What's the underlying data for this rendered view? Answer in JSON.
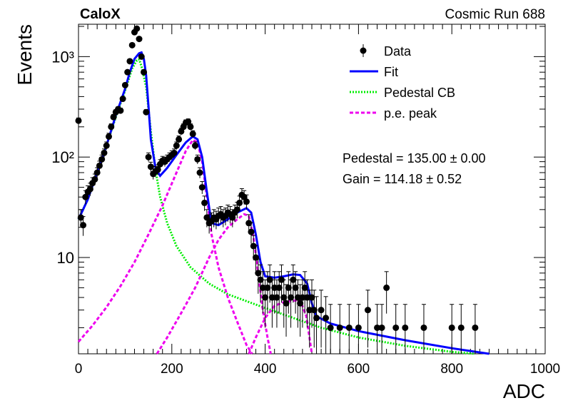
{
  "header": {
    "left_label": "CaloX",
    "right_label": "Cosmic Run 688"
  },
  "stats": {
    "pedestal": "Pedestal = 135.00 ± 0.00",
    "gain": "Gain = 114.18 ± 0.52"
  },
  "chart_data": {
    "type": "scatter",
    "xlabel": "ADC",
    "ylabel": "Events",
    "xlim": [
      0,
      1000
    ],
    "ylim": [
      1.1,
      2100
    ],
    "y_scale": "log",
    "x_ticks": [
      0,
      200,
      400,
      600,
      800,
      1000
    ],
    "y_ticks": [
      {
        "value": 10,
        "label": "10"
      },
      {
        "value": 100,
        "label": "10²"
      },
      {
        "value": 1000,
        "label": "10³"
      }
    ],
    "grid": false,
    "legend": {
      "placement": "top-right",
      "entries": [
        {
          "label": "Data",
          "style": "marker",
          "color": "#000000"
        },
        {
          "label": "Fit",
          "style": "solid",
          "color": "#0000ff"
        },
        {
          "label": "Pedestal CB",
          "style": "dotted",
          "color": "#00ee00"
        },
        {
          "label": "p.e. peak",
          "style": "dashed",
          "color": "#ee00ee"
        }
      ]
    },
    "series": [
      {
        "name": "Data",
        "style": "marker",
        "color": "#000000",
        "points": [
          {
            "x": 0,
            "y": 230
          },
          {
            "x": 5,
            "y": 25
          },
          {
            "x": 10,
            "y": 21
          },
          {
            "x": 15,
            "y": 40
          },
          {
            "x": 20,
            "y": 45
          },
          {
            "x": 25,
            "y": 48
          },
          {
            "x": 30,
            "y": 55
          },
          {
            "x": 35,
            "y": 60
          },
          {
            "x": 40,
            "y": 70
          },
          {
            "x": 45,
            "y": 82
          },
          {
            "x": 50,
            "y": 95
          },
          {
            "x": 55,
            "y": 110
          },
          {
            "x": 60,
            "y": 130
          },
          {
            "x": 65,
            "y": 160
          },
          {
            "x": 70,
            "y": 200
          },
          {
            "x": 75,
            "y": 250
          },
          {
            "x": 80,
            "y": 280
          },
          {
            "x": 85,
            "y": 300
          },
          {
            "x": 90,
            "y": 290
          },
          {
            "x": 95,
            "y": 380
          },
          {
            "x": 100,
            "y": 520
          },
          {
            "x": 105,
            "y": 700
          },
          {
            "x": 110,
            "y": 900
          },
          {
            "x": 115,
            "y": 1300
          },
          {
            "x": 120,
            "y": 1750
          },
          {
            "x": 125,
            "y": 1900
          },
          {
            "x": 130,
            "y": 1500
          },
          {
            "x": 135,
            "y": 1000
          },
          {
            "x": 140,
            "y": 700
          },
          {
            "x": 145,
            "y": 280
          },
          {
            "x": 150,
            "y": 100
          },
          {
            "x": 155,
            "y": 80
          },
          {
            "x": 160,
            "y": 68
          },
          {
            "x": 165,
            "y": 72
          },
          {
            "x": 170,
            "y": 75
          },
          {
            "x": 175,
            "y": 85
          },
          {
            "x": 180,
            "y": 92
          },
          {
            "x": 185,
            "y": 90
          },
          {
            "x": 190,
            "y": 95
          },
          {
            "x": 195,
            "y": 100
          },
          {
            "x": 200,
            "y": 105
          },
          {
            "x": 205,
            "y": 110
          },
          {
            "x": 210,
            "y": 130
          },
          {
            "x": 215,
            "y": 150
          },
          {
            "x": 220,
            "y": 180
          },
          {
            "x": 225,
            "y": 200
          },
          {
            "x": 230,
            "y": 220
          },
          {
            "x": 235,
            "y": 225
          },
          {
            "x": 240,
            "y": 200
          },
          {
            "x": 245,
            "y": 170
          },
          {
            "x": 250,
            "y": 130
          },
          {
            "x": 255,
            "y": 95
          },
          {
            "x": 260,
            "y": 70
          },
          {
            "x": 265,
            "y": 50
          },
          {
            "x": 270,
            "y": 35
          },
          {
            "x": 275,
            "y": 25
          },
          {
            "x": 280,
            "y": 22
          },
          {
            "x": 285,
            "y": 23
          },
          {
            "x": 290,
            "y": 25
          },
          {
            "x": 295,
            "y": 24
          },
          {
            "x": 300,
            "y": 26
          },
          {
            "x": 305,
            "y": 27
          },
          {
            "x": 310,
            "y": 25
          },
          {
            "x": 315,
            "y": 26
          },
          {
            "x": 320,
            "y": 28
          },
          {
            "x": 325,
            "y": 27
          },
          {
            "x": 330,
            "y": 25
          },
          {
            "x": 335,
            "y": 28
          },
          {
            "x": 340,
            "y": 30
          },
          {
            "x": 345,
            "y": 35
          },
          {
            "x": 350,
            "y": 42
          },
          {
            "x": 355,
            "y": 40
          },
          {
            "x": 360,
            "y": 36
          },
          {
            "x": 365,
            "y": 22
          },
          {
            "x": 370,
            "y": 18
          },
          {
            "x": 375,
            "y": 13
          },
          {
            "x": 380,
            "y": 10
          },
          {
            "x": 385,
            "y": 7
          },
          {
            "x": 390,
            "y": 6
          },
          {
            "x": 395,
            "y": 5
          },
          {
            "x": 400,
            "y": 4
          },
          {
            "x": 405,
            "y": 5
          },
          {
            "x": 410,
            "y": 6
          },
          {
            "x": 415,
            "y": 4
          },
          {
            "x": 420,
            "y": 5
          },
          {
            "x": 425,
            "y": 4
          },
          {
            "x": 430,
            "y": 5
          },
          {
            "x": 435,
            "y": 6
          },
          {
            "x": 440,
            "y": 4
          },
          {
            "x": 445,
            "y": 3.5
          },
          {
            "x": 450,
            "y": 5
          },
          {
            "x": 455,
            "y": 4
          },
          {
            "x": 460,
            "y": 6
          },
          {
            "x": 465,
            "y": 5
          },
          {
            "x": 470,
            "y": 4
          },
          {
            "x": 475,
            "y": 3.5
          },
          {
            "x": 480,
            "y": 4
          },
          {
            "x": 485,
            "y": 5
          },
          {
            "x": 490,
            "y": 4
          },
          {
            "x": 495,
            "y": 3
          },
          {
            "x": 500,
            "y": 4
          },
          {
            "x": 505,
            "y": 3
          },
          {
            "x": 510,
            "y": 2.5
          },
          {
            "x": 520,
            "y": 3
          },
          {
            "x": 530,
            "y": 2.5
          },
          {
            "x": 540,
            "y": 2
          },
          {
            "x": 560,
            "y": 2
          },
          {
            "x": 580,
            "y": 2
          },
          {
            "x": 600,
            "y": 2
          },
          {
            "x": 620,
            "y": 3
          },
          {
            "x": 640,
            "y": 2
          },
          {
            "x": 650,
            "y": 2
          },
          {
            "x": 660,
            "y": 5
          },
          {
            "x": 680,
            "y": 2
          },
          {
            "x": 700,
            "y": 2
          },
          {
            "x": 740,
            "y": 2
          },
          {
            "x": 800,
            "y": 2
          },
          {
            "x": 820,
            "y": 2
          },
          {
            "x": 850,
            "y": 2
          }
        ]
      },
      {
        "name": "Fit",
        "style": "solid",
        "color": "#0000ff",
        "points": [
          {
            "x": 0,
            "y": 24
          },
          {
            "x": 20,
            "y": 38
          },
          {
            "x": 40,
            "y": 70
          },
          {
            "x": 60,
            "y": 130
          },
          {
            "x": 80,
            "y": 260
          },
          {
            "x": 100,
            "y": 480
          },
          {
            "x": 110,
            "y": 700
          },
          {
            "x": 120,
            "y": 950
          },
          {
            "x": 130,
            "y": 1080
          },
          {
            "x": 135,
            "y": 1100
          },
          {
            "x": 140,
            "y": 950
          },
          {
            "x": 145,
            "y": 650
          },
          {
            "x": 150,
            "y": 320
          },
          {
            "x": 155,
            "y": 150
          },
          {
            "x": 165,
            "y": 78
          },
          {
            "x": 175,
            "y": 65
          },
          {
            "x": 190,
            "y": 78
          },
          {
            "x": 210,
            "y": 105
          },
          {
            "x": 230,
            "y": 140
          },
          {
            "x": 245,
            "y": 160
          },
          {
            "x": 255,
            "y": 150
          },
          {
            "x": 265,
            "y": 100
          },
          {
            "x": 275,
            "y": 45
          },
          {
            "x": 285,
            "y": 22
          },
          {
            "x": 300,
            "y": 21
          },
          {
            "x": 320,
            "y": 24
          },
          {
            "x": 340,
            "y": 28
          },
          {
            "x": 360,
            "y": 31
          },
          {
            "x": 370,
            "y": 28
          },
          {
            "x": 380,
            "y": 17
          },
          {
            "x": 390,
            "y": 9
          },
          {
            "x": 400,
            "y": 6.5
          },
          {
            "x": 420,
            "y": 6.3
          },
          {
            "x": 440,
            "y": 6.5
          },
          {
            "x": 460,
            "y": 6.8
          },
          {
            "x": 475,
            "y": 6.7
          },
          {
            "x": 490,
            "y": 5.5
          },
          {
            "x": 500,
            "y": 3.5
          },
          {
            "x": 510,
            "y": 2.6
          },
          {
            "x": 540,
            "y": 2.2
          },
          {
            "x": 600,
            "y": 1.85
          },
          {
            "x": 700,
            "y": 1.5
          },
          {
            "x": 800,
            "y": 1.25
          },
          {
            "x": 880,
            "y": 1.1
          }
        ]
      },
      {
        "name": "Pedestal CB",
        "style": "dotted",
        "color": "#00ee00",
        "points": [
          {
            "x": 0,
            "y": 24
          },
          {
            "x": 20,
            "y": 38
          },
          {
            "x": 40,
            "y": 70
          },
          {
            "x": 60,
            "y": 130
          },
          {
            "x": 80,
            "y": 250
          },
          {
            "x": 100,
            "y": 460
          },
          {
            "x": 115,
            "y": 760
          },
          {
            "x": 125,
            "y": 920
          },
          {
            "x": 130,
            "y": 940
          },
          {
            "x": 135,
            "y": 800
          },
          {
            "x": 145,
            "y": 500
          },
          {
            "x": 155,
            "y": 180
          },
          {
            "x": 165,
            "y": 75
          },
          {
            "x": 175,
            "y": 40
          },
          {
            "x": 190,
            "y": 22
          },
          {
            "x": 210,
            "y": 13
          },
          {
            "x": 240,
            "y": 8
          },
          {
            "x": 280,
            "y": 5.5
          },
          {
            "x": 320,
            "y": 4.3
          },
          {
            "x": 380,
            "y": 3.4
          },
          {
            "x": 450,
            "y": 2.6
          },
          {
            "x": 520,
            "y": 2.0
          },
          {
            "x": 600,
            "y": 1.6
          },
          {
            "x": 700,
            "y": 1.32
          },
          {
            "x": 800,
            "y": 1.15
          },
          {
            "x": 850,
            "y": 1.1
          }
        ]
      },
      {
        "name": "p.e. peak",
        "style": "dashed",
        "color": "#ee00ee",
        "segments": [
          [
            {
              "x": 0,
              "y": 1.45
            },
            {
              "x": 30,
              "y": 2.1
            },
            {
              "x": 60,
              "y": 3.2
            },
            {
              "x": 90,
              "y": 5.2
            },
            {
              "x": 120,
              "y": 9
            },
            {
              "x": 150,
              "y": 17
            },
            {
              "x": 180,
              "y": 33
            },
            {
              "x": 210,
              "y": 70
            },
            {
              "x": 230,
              "y": 115
            },
            {
              "x": 245,
              "y": 148
            },
            {
              "x": 255,
              "y": 140
            },
            {
              "x": 265,
              "y": 90
            },
            {
              "x": 275,
              "y": 40
            },
            {
              "x": 285,
              "y": 17
            },
            {
              "x": 300,
              "y": 8
            },
            {
              "x": 320,
              "y": 4
            },
            {
              "x": 340,
              "y": 2.3
            },
            {
              "x": 360,
              "y": 1.35
            },
            {
              "x": 372,
              "y": 1.1
            }
          ],
          [
            {
              "x": 168,
              "y": 1.1
            },
            {
              "x": 190,
              "y": 1.6
            },
            {
              "x": 220,
              "y": 2.8
            },
            {
              "x": 250,
              "y": 5
            },
            {
              "x": 280,
              "y": 10
            },
            {
              "x": 300,
              "y": 15
            },
            {
              "x": 320,
              "y": 20
            },
            {
              "x": 340,
              "y": 24
            },
            {
              "x": 355,
              "y": 27
            },
            {
              "x": 365,
              "y": 26
            },
            {
              "x": 375,
              "y": 16
            },
            {
              "x": 385,
              "y": 7
            },
            {
              "x": 395,
              "y": 3
            },
            {
              "x": 405,
              "y": 1.6
            },
            {
              "x": 412,
              "y": 1.1
            }
          ],
          [
            {
              "x": 365,
              "y": 1.1
            },
            {
              "x": 380,
              "y": 1.6
            },
            {
              "x": 400,
              "y": 2.5
            },
            {
              "x": 420,
              "y": 3.3
            },
            {
              "x": 440,
              "y": 3.6
            },
            {
              "x": 460,
              "y": 3.7
            },
            {
              "x": 475,
              "y": 3.8
            },
            {
              "x": 488,
              "y": 2.6
            },
            {
              "x": 495,
              "y": 1.6
            },
            {
              "x": 500,
              "y": 1.1
            }
          ]
        ]
      }
    ]
  }
}
